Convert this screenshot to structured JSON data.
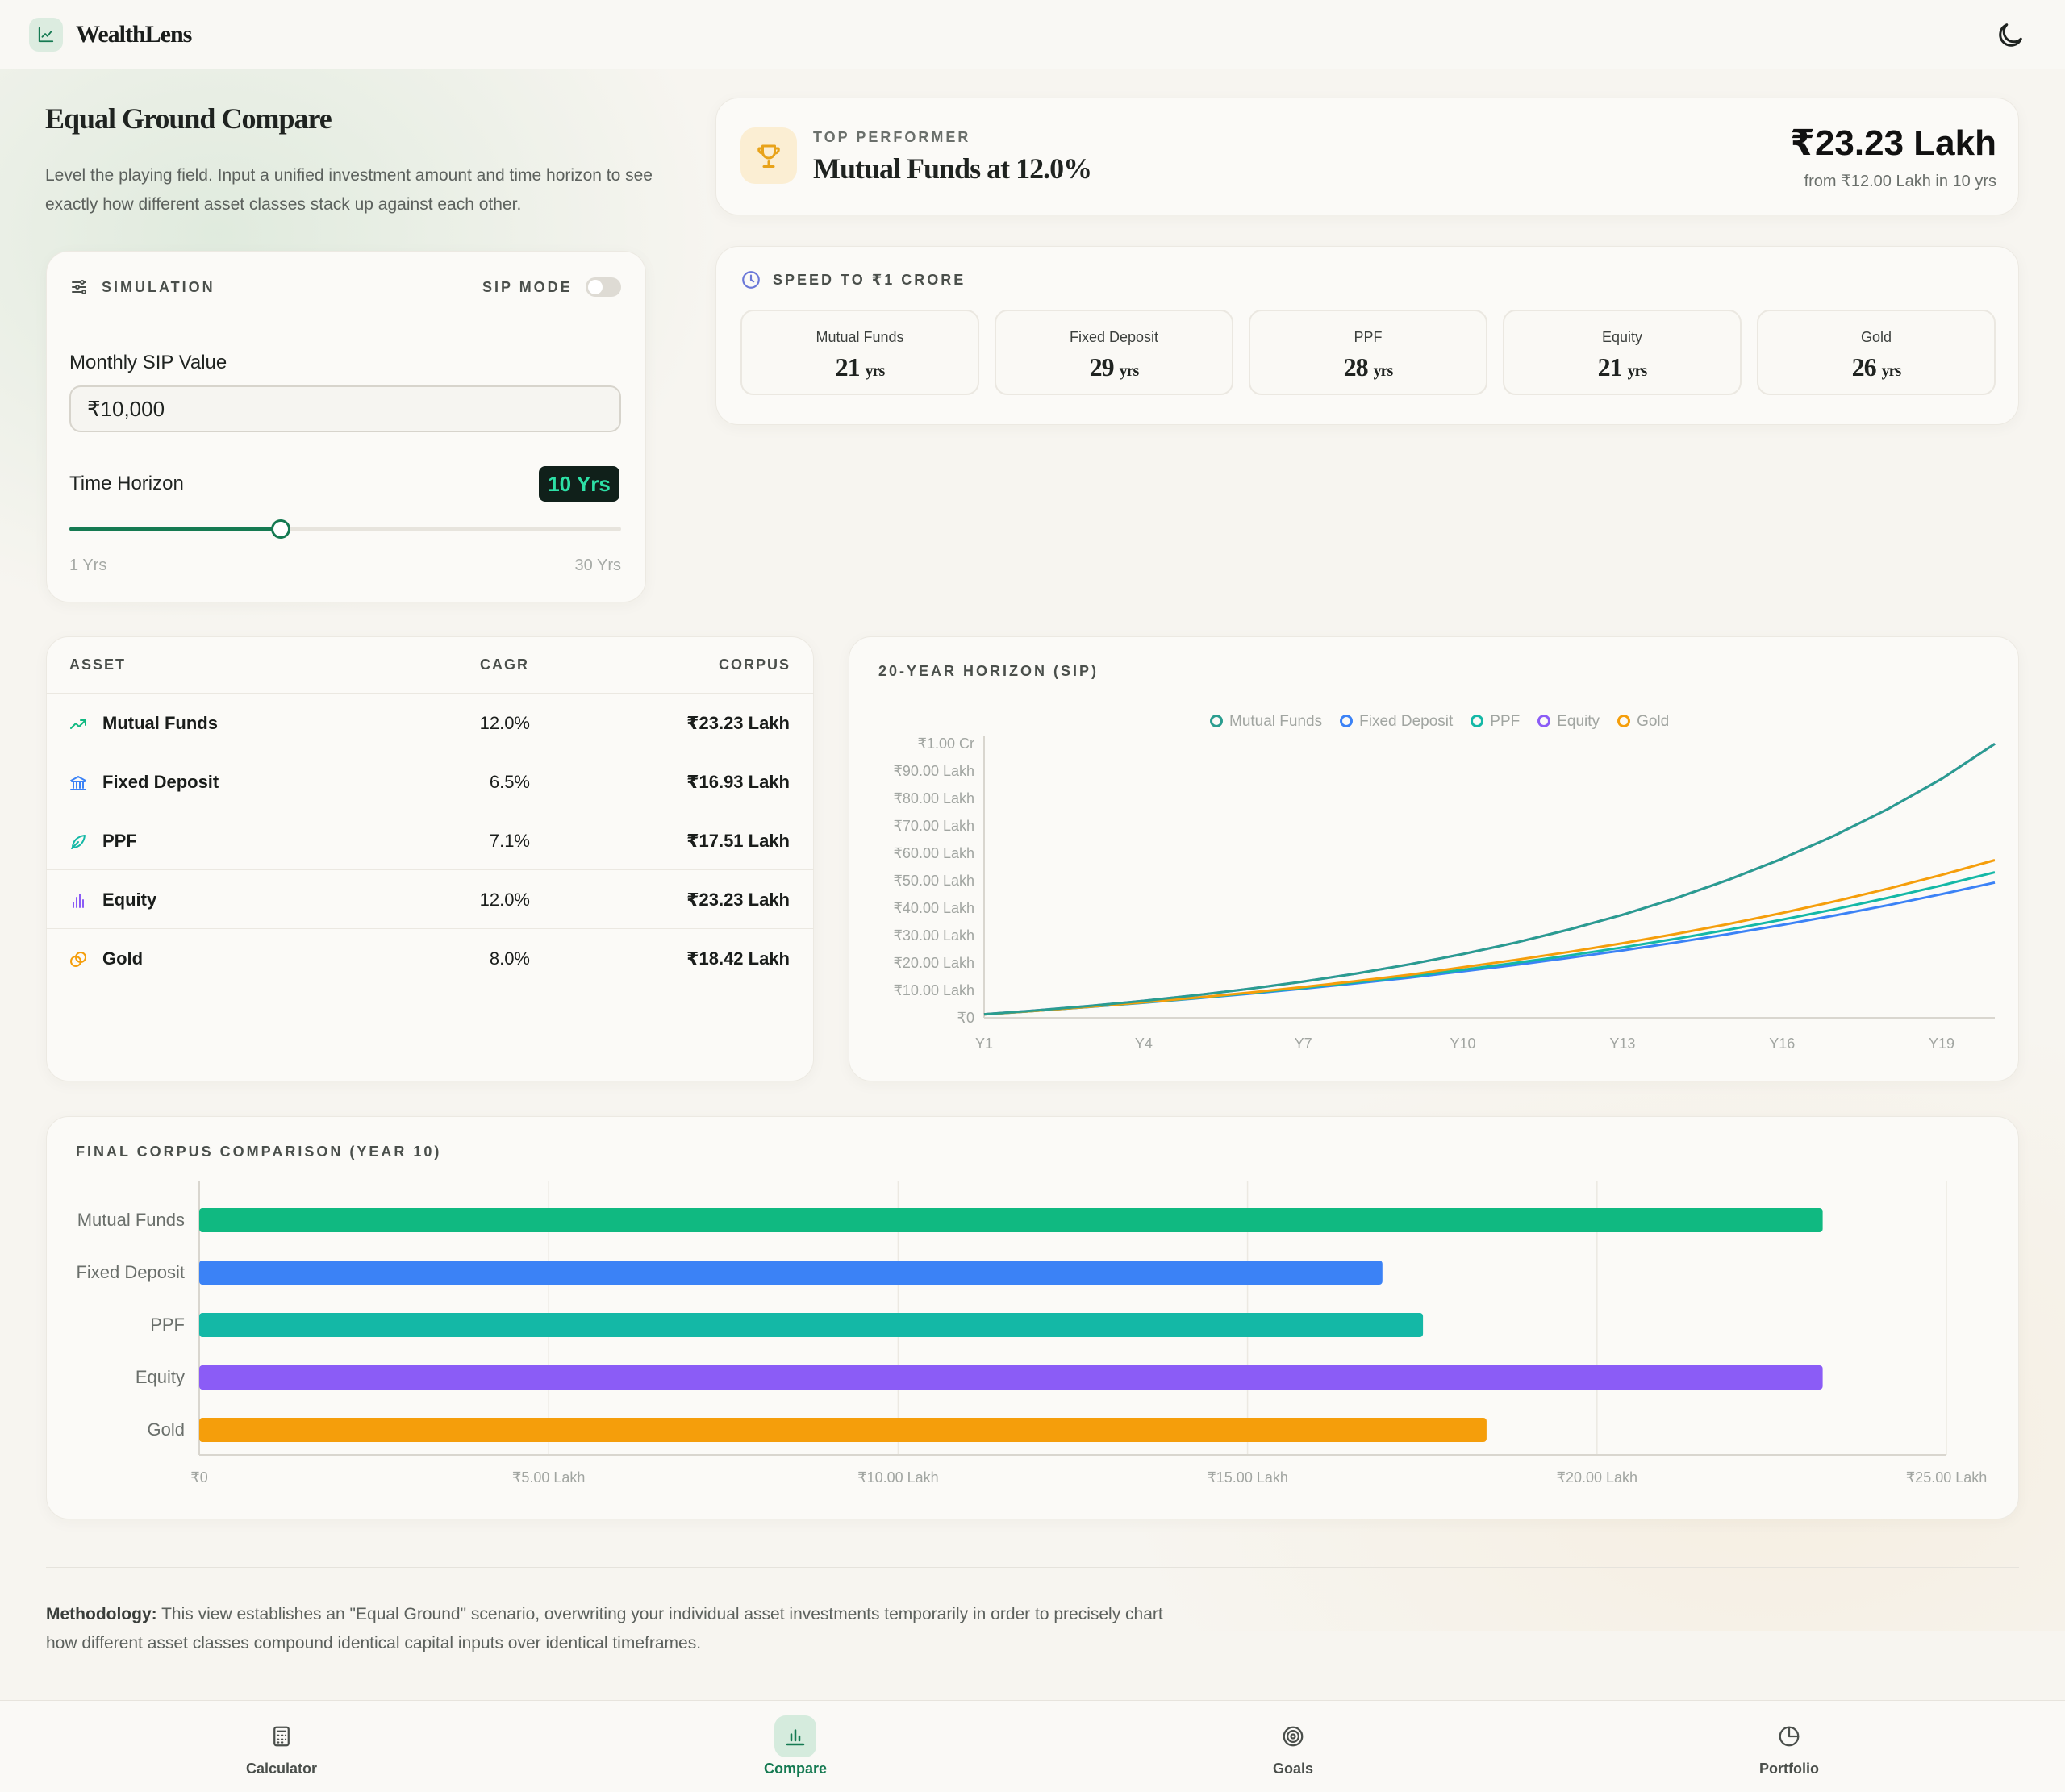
{
  "app": {
    "name": "WealthLens"
  },
  "page": {
    "title": "Equal Ground Compare",
    "subtitle": "Level the playing field. Input a unified investment amount and time horizon to see exactly how different asset classes stack up against each other."
  },
  "simulation": {
    "header": "SIMULATION",
    "mode_label": "SIP MODE",
    "mode_on": false,
    "amount_label": "Monthly SIP Value",
    "amount_value": "₹10,000",
    "horizon_label": "Time Horizon",
    "horizon_badge": "10 Yrs",
    "horizon_value": 10,
    "horizon_min": 1,
    "horizon_max": 30,
    "min_label": "1 Yrs",
    "max_label": "30 Yrs"
  },
  "top_performer": {
    "label": "TOP PERFORMER",
    "name": "Mutual Funds at 12.0%",
    "value": "₹23.23 Lakh",
    "sub": "from ₹12.00 Lakh in 10 yrs"
  },
  "speed": {
    "label": "SPEED TO ₹1 CRORE",
    "tiles": [
      {
        "name": "Mutual Funds",
        "years": "21",
        "unit": "yrs"
      },
      {
        "name": "Fixed Deposit",
        "years": "29",
        "unit": "yrs"
      },
      {
        "name": "PPF",
        "years": "28",
        "unit": "yrs"
      },
      {
        "name": "Equity",
        "years": "21",
        "unit": "yrs"
      },
      {
        "name": "Gold",
        "years": "26",
        "unit": "yrs"
      }
    ]
  },
  "table": {
    "headers": {
      "asset": "ASSET",
      "cagr": "CAGR",
      "corpus": "CORPUS"
    },
    "rows": [
      {
        "name": "Mutual Funds",
        "cagr": "12.0%",
        "corpus": "₹23.23 Lakh",
        "icon": "trending-up-icon"
      },
      {
        "name": "Fixed Deposit",
        "cagr": "6.5%",
        "corpus": "₹16.93 Lakh",
        "icon": "bank-icon"
      },
      {
        "name": "PPF",
        "cagr": "7.1%",
        "corpus": "₹17.51 Lakh",
        "icon": "leaf-icon"
      },
      {
        "name": "Equity",
        "cagr": "12.0%",
        "corpus": "₹23.23 Lakh",
        "icon": "bar-chart-icon"
      },
      {
        "name": "Gold",
        "cagr": "8.0%",
        "corpus": "₹18.42 Lakh",
        "icon": "coins-icon"
      }
    ]
  },
  "colors": {
    "mutual_funds": "#10b981",
    "fixed_deposit": "#3b82f6",
    "ppf": "#14b8a6",
    "equity": "#8b5cf6",
    "gold": "#f59e0b",
    "accent": "#157a52",
    "mf_line": "#2a9d8f"
  },
  "chart_data": [
    {
      "type": "line",
      "title": "20-YEAR HORIZON (SIP)",
      "x": [
        "Y1",
        "Y2",
        "Y3",
        "Y4",
        "Y5",
        "Y6",
        "Y7",
        "Y8",
        "Y9",
        "Y10",
        "Y11",
        "Y12",
        "Y13",
        "Y14",
        "Y15",
        "Y16",
        "Y17",
        "Y18",
        "Y19",
        "Y20"
      ],
      "x_tick_labels": [
        "Y1",
        "Y4",
        "Y7",
        "Y10",
        "Y13",
        "Y16",
        "Y19"
      ],
      "y_tick_labels": [
        "₹0",
        "₹10.00 Lakh",
        "₹20.00 Lakh",
        "₹30.00 Lakh",
        "₹40.00 Lakh",
        "₹50.00 Lakh",
        "₹60.00 Lakh",
        "₹70.00 Lakh",
        "₹80.00 Lakh",
        "₹90.00 Lakh",
        "₹1.00 Cr"
      ],
      "ylim": [
        0,
        100
      ],
      "y_unit": "Lakh",
      "grid": false,
      "legend_position": "top-center",
      "series": [
        {
          "name": "Mutual Funds",
          "color": "#2a9d8f",
          "values": [
            1.28,
            2.72,
            4.35,
            6.18,
            8.25,
            10.58,
            13.2,
            16.16,
            19.5,
            23.23,
            27.45,
            32.2,
            37.55,
            43.58,
            50.38,
            58.0,
            66.58,
            76.25,
            87.15,
            99.91
          ]
        },
        {
          "name": "Fixed Deposit",
          "color": "#3b82f6",
          "values": [
            1.24,
            2.56,
            3.97,
            5.48,
            7.09,
            8.8,
            10.63,
            12.58,
            14.66,
            16.93,
            19.3,
            21.85,
            24.56,
            27.45,
            30.55,
            33.84,
            37.35,
            41.09,
            45.08,
            49.32
          ]
        },
        {
          "name": "PPF",
          "color": "#14b8a6",
          "values": [
            1.24,
            2.58,
            4.01,
            5.56,
            7.21,
            8.99,
            10.89,
            12.93,
            15.12,
            17.51,
            20.02,
            22.73,
            25.65,
            28.78,
            32.14,
            35.75,
            39.63,
            43.79,
            48.26,
            53.05
          ]
        },
        {
          "name": "Equity",
          "color": "#8b5cf6",
          "values": [
            1.28,
            2.72,
            4.35,
            6.18,
            8.25,
            10.58,
            13.2,
            16.16,
            19.5,
            23.23,
            27.45,
            32.2,
            37.55,
            43.58,
            50.38,
            58.0,
            66.58,
            76.25,
            87.15,
            99.91
          ]
        },
        {
          "name": "Gold",
          "color": "#f59e0b",
          "values": [
            1.25,
            2.6,
            4.07,
            5.65,
            7.36,
            9.21,
            11.21,
            13.37,
            15.7,
            18.42,
            21.12,
            24.03,
            27.17,
            30.57,
            34.24,
            38.21,
            42.49,
            47.11,
            52.11,
            57.5
          ]
        }
      ]
    },
    {
      "type": "bar",
      "orientation": "horizontal",
      "title": "FINAL CORPUS COMPARISON (YEAR 10)",
      "categories": [
        "Mutual Funds",
        "Fixed Deposit",
        "PPF",
        "Equity",
        "Gold"
      ],
      "values": [
        23.23,
        16.93,
        17.51,
        23.23,
        18.42
      ],
      "colors": [
        "#10b981",
        "#3b82f6",
        "#14b8a6",
        "#8b5cf6",
        "#f59e0b"
      ],
      "x_unit": "Lakh",
      "xlim": [
        0,
        25
      ],
      "x_tick_values": [
        0,
        5,
        10,
        15,
        20,
        25
      ],
      "x_tick_labels": [
        "₹0",
        "₹5.00 Lakh",
        "₹10.00 Lakh",
        "₹15.00 Lakh",
        "₹20.00 Lakh",
        "₹25.00 Lakh"
      ],
      "grid": true
    }
  ],
  "methodology": {
    "label": "Methodology:",
    "text": "This view establishes an \"Equal Ground\" scenario, overwriting your individual asset investments temporarily in order to precisely chart how different asset classes compound identical capital inputs over identical timeframes."
  },
  "nav": {
    "items": [
      {
        "label": "Calculator",
        "icon": "calculator-icon",
        "active": false
      },
      {
        "label": "Compare",
        "icon": "bar-chart-icon",
        "active": true
      },
      {
        "label": "Goals",
        "icon": "target-icon",
        "active": false
      },
      {
        "label": "Portfolio",
        "icon": "pie-chart-icon",
        "active": false
      }
    ]
  }
}
